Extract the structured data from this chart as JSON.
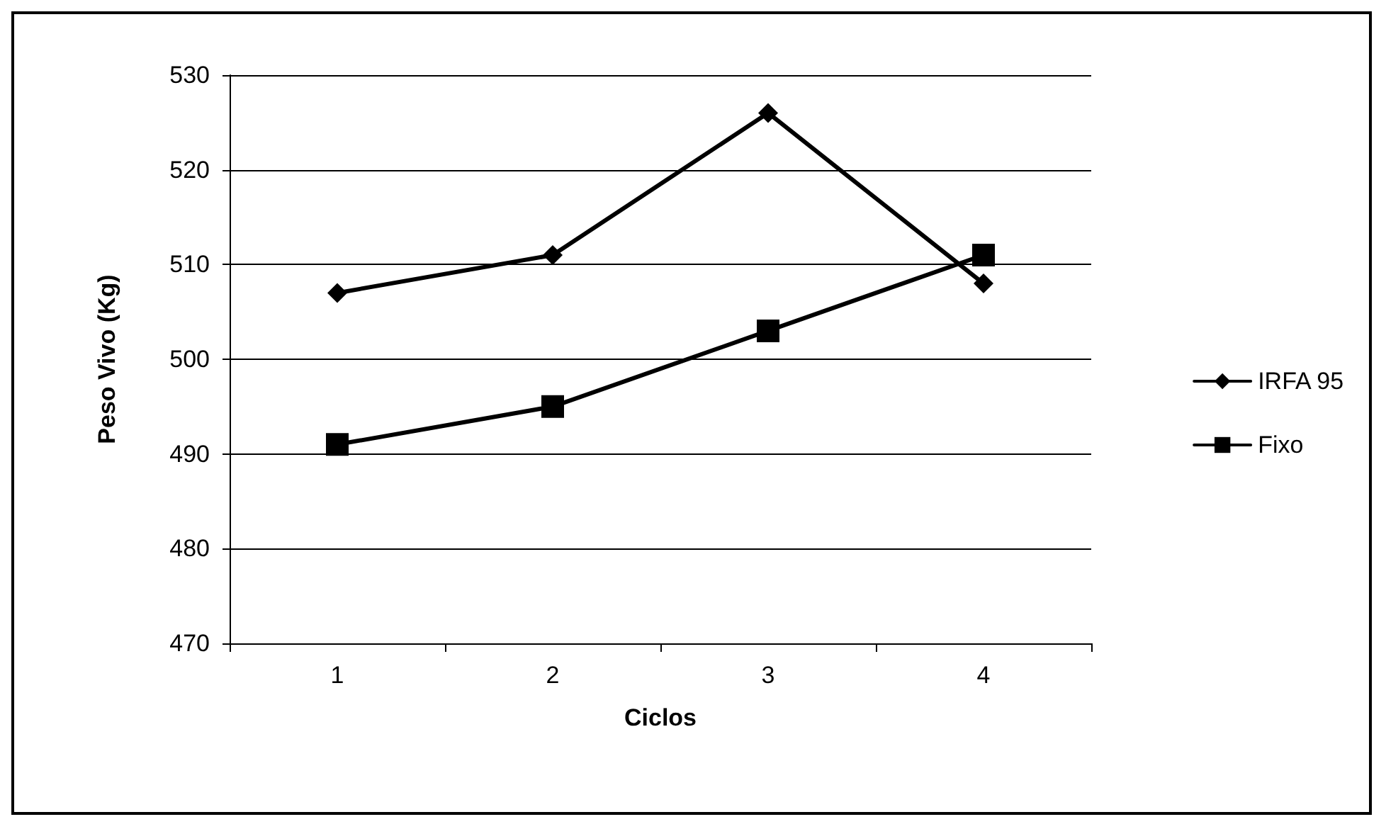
{
  "chart_data": {
    "type": "line",
    "xlabel": "Ciclos",
    "ylabel": "Peso Vivo (Kg)",
    "categories": [
      "1",
      "2",
      "3",
      "4"
    ],
    "series": [
      {
        "name": "IRFA 95",
        "color": "#000000",
        "marker": "diamond",
        "values": [
          507,
          511,
          526,
          508
        ]
      },
      {
        "name": "Fixo",
        "color": "#000000",
        "marker": "square",
        "values": [
          491,
          495,
          503,
          511
        ]
      }
    ],
    "ylim": [
      470,
      530
    ],
    "yticks": [
      470,
      480,
      490,
      500,
      510,
      520,
      530
    ],
    "grid": "y",
    "legend": "right",
    "line_style": "solid"
  }
}
